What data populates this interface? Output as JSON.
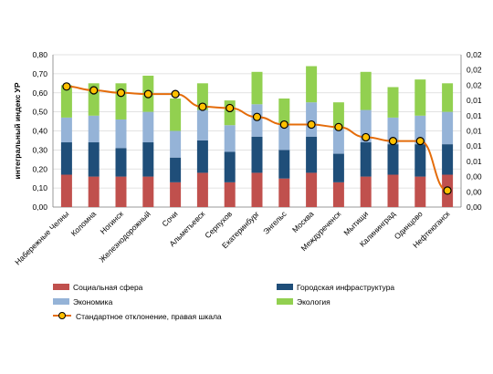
{
  "chart_data": {
    "type": "bar",
    "stacked": true,
    "categories": [
      "Набережные Челны",
      "Коломна",
      "Ногинск",
      "Железнодорожный",
      "Сочи",
      "Альметьевск",
      "Серпухов",
      "Екатеринбург",
      "Энгельс",
      "Москва",
      "Междуреченск",
      "Мытищи",
      "Калининград",
      "Одинцово",
      "Нефтеюганск"
    ],
    "series": [
      {
        "name": "Социальная сфера",
        "color": "#c0504d",
        "values": [
          0.17,
          0.16,
          0.16,
          0.16,
          0.13,
          0.18,
          0.13,
          0.18,
          0.15,
          0.18,
          0.13,
          0.16,
          0.17,
          0.16,
          0.17
        ]
      },
      {
        "name": "Городская инфраструктура",
        "color": "#1f4e79",
        "values": [
          0.17,
          0.18,
          0.15,
          0.18,
          0.13,
          0.17,
          0.16,
          0.19,
          0.15,
          0.19,
          0.15,
          0.18,
          0.16,
          0.17,
          0.16
        ]
      },
      {
        "name": "Экономика",
        "color": "#95b3d7",
        "values": [
          0.13,
          0.14,
          0.15,
          0.16,
          0.14,
          0.16,
          0.14,
          0.17,
          0.14,
          0.18,
          0.13,
          0.17,
          0.14,
          0.15,
          0.17
        ]
      },
      {
        "name": "Экология",
        "color": "#92d050",
        "values": [
          0.17,
          0.17,
          0.19,
          0.19,
          0.17,
          0.14,
          0.13,
          0.17,
          0.13,
          0.19,
          0.14,
          0.2,
          0.16,
          0.19,
          0.15
        ]
      }
    ],
    "line_series": {
      "name": "Стандартное отклонение, правая шкала",
      "color": "#e46c0a",
      "marker_fill": "#ffc000",
      "axis": "right",
      "values": [
        0.02,
        0.0197,
        0.0195,
        0.0194,
        0.0194,
        0.0184,
        0.0183,
        0.0176,
        0.017,
        0.017,
        0.0168,
        0.016,
        0.0157,
        0.0157,
        0.0118
      ]
    },
    "ylabel": "интегральный индекс УР",
    "ylim": [
      0,
      0.8
    ],
    "y_ticks": [
      "0,00",
      "0,10",
      "0,20",
      "0,30",
      "0,40",
      "0,50",
      "0,60",
      "0,70",
      "0,80"
    ],
    "y2lim": [
      0.0105,
      0.0225
    ],
    "y2_ticks": [
      "0,00",
      "0,00",
      "0,00",
      "0,01",
      "0,01",
      "0,01",
      "0,01",
      "0,01",
      "0,02",
      "0,02",
      "0,02"
    ],
    "grid": true,
    "legend_position": "bottom"
  }
}
